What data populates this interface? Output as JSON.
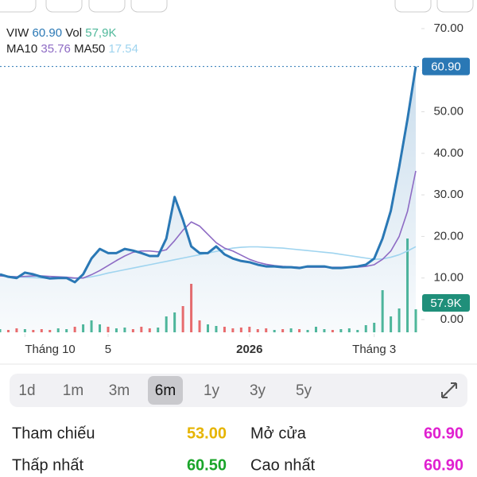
{
  "chart_data": {
    "type": "line",
    "x": [
      0,
      1,
      2,
      3,
      4,
      5,
      6,
      7,
      8,
      9,
      10,
      11,
      12,
      13,
      14,
      15,
      16,
      17,
      18,
      19,
      20,
      21,
      22,
      23,
      24,
      25,
      26,
      27,
      28,
      29,
      30,
      31,
      32,
      33,
      34,
      35,
      36,
      37,
      38,
      39,
      40,
      41,
      42,
      43,
      44,
      45,
      46,
      47,
      48,
      49,
      50
    ],
    "xlim": [
      0,
      50
    ],
    "xticks": [
      {
        "value": 3,
        "label": "Tháng 10"
      },
      {
        "value": 13,
        "label": "5"
      },
      {
        "value": 30,
        "label": "2026"
      },
      {
        "value": 45,
        "label": "Tháng 3"
      }
    ],
    "ylim": [
      0,
      70
    ],
    "yticks": [
      {
        "value": 0,
        "label": "0.00"
      },
      {
        "value": 10,
        "label": "10.00"
      },
      {
        "value": 20,
        "label": "20.00"
      },
      {
        "value": 30,
        "label": "30.00"
      },
      {
        "value": 40,
        "label": "40.00"
      },
      {
        "value": 50,
        "label": "50.00"
      },
      {
        "value": 60,
        "label": "60.00"
      },
      {
        "value": 70,
        "label": "70.00"
      }
    ],
    "y2lim": [
      0,
      240
    ],
    "series": [
      {
        "name": "VIW",
        "color": "#2a78b5",
        "legend_value": "60.90",
        "tag": "60.90",
        "values": [
          10.9,
          10.3,
          10,
          11.3,
          10.9,
          10.3,
          9.9,
          10,
          10,
          9,
          10.9,
          14.7,
          17,
          16,
          16,
          17,
          16.6,
          16,
          15.3,
          15.3,
          19.5,
          29.5,
          24,
          17.6,
          16,
          16,
          17.6,
          15.7,
          14.7,
          14.1,
          13.8,
          13.2,
          12.8,
          12.8,
          12.6,
          12.6,
          12.4,
          12.8,
          12.8,
          12.8,
          12.4,
          12.4,
          12.6,
          12.8,
          13.2,
          14.7,
          19.5,
          26.2,
          36.7,
          48.2,
          60.9
        ]
      },
      {
        "name": "MA10",
        "color": "#8e6bc4",
        "legend_value": "35.76",
        "values": [
          10.5,
          10.4,
          10.3,
          10.4,
          10.5,
          10.5,
          10.4,
          10.3,
          10.2,
          10,
          10,
          10.8,
          11.8,
          13,
          14.2,
          15.3,
          16.2,
          16.5,
          16.5,
          16.3,
          16.8,
          19,
          21.5,
          23.5,
          22.5,
          20.5,
          18.5,
          17.2,
          16.5,
          15.5,
          14.5,
          13.8,
          13.3,
          13,
          12.8,
          12.7,
          12.6,
          12.6,
          12.6,
          12.6,
          12.6,
          12.6,
          12.6,
          12.6,
          12.8,
          13.2,
          14.5,
          16.5,
          20,
          26,
          35.76
        ]
      },
      {
        "name": "MA50",
        "color": "#9fd4ef",
        "legend_value": "17.54",
        "values": [
          10.5,
          10.4,
          10.3,
          10.2,
          10.1,
          10,
          9.9,
          9.9,
          9.9,
          9.9,
          10,
          10.3,
          10.7,
          11.2,
          11.6,
          12,
          12.4,
          12.8,
          13.2,
          13.6,
          14,
          14.4,
          14.8,
          15.2,
          15.6,
          16,
          16.4,
          16.8,
          17.2,
          17.4,
          17.5,
          17.5,
          17.4,
          17.3,
          17.2,
          17,
          16.8,
          16.6,
          16.4,
          16.2,
          16,
          15.7,
          15.4,
          15.1,
          14.8,
          14.5,
          14.6,
          15,
          15.6,
          16.5,
          17.54
        ]
      }
    ],
    "volume": {
      "name": "Vol",
      "axis": "y2",
      "legend_value": "57,9K",
      "tag": "57.9K",
      "color_up": "#4fb89a",
      "color_down": "#ef6b6b",
      "values": [
        8,
        6,
        10,
        8,
        6,
        8,
        6,
        10,
        8,
        14,
        20,
        30,
        20,
        14,
        10,
        12,
        8,
        14,
        10,
        12,
        40,
        50,
        66,
        122,
        30,
        20,
        16,
        14,
        10,
        12,
        14,
        8,
        10,
        6,
        8,
        10,
        8,
        6,
        14,
        8,
        6,
        8,
        10,
        6,
        18,
        24,
        106,
        40,
        60,
        236,
        57.9
      ]
    }
  },
  "ranges": {
    "options": [
      "1d",
      "1m",
      "3m",
      "6m",
      "1y",
      "3y",
      "5y"
    ],
    "selected": 3
  },
  "stats": [
    {
      "label": "Tham chiếu",
      "value": "53.00",
      "color": "#e6b400"
    },
    {
      "label": "Mở cửa",
      "value": "60.90",
      "color": "#e020d0"
    },
    {
      "label": "Thấp nhất",
      "value": "60.50",
      "color": "#1aa52a"
    },
    {
      "label": "Cao nhất",
      "value": "60.90",
      "color": "#e020d0"
    }
  ]
}
